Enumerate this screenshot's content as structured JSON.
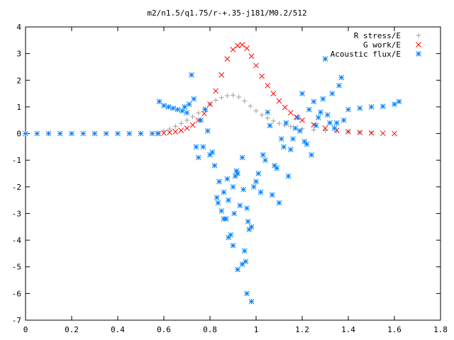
{
  "chart_data": {
    "type": "scatter",
    "title": "m2/n1.5/q1.75/r-+.35-j181/M0.2/512",
    "xlabel": "",
    "ylabel": "",
    "xlim": [
      0,
      1.8
    ],
    "ylim": [
      -7,
      4
    ],
    "xticks": [
      "0",
      "0.2",
      "0.4",
      "0.6",
      "0.8",
      "1",
      "1.2",
      "1.4",
      "1.6",
      "1.8"
    ],
    "yticks": [
      "-7",
      "-6",
      "-5",
      "-4",
      "-3",
      "-2",
      "-1",
      "0",
      "1",
      "2",
      "3",
      "4"
    ],
    "grid": false,
    "legend_position": "top-right",
    "series": [
      {
        "name": "R stress/E",
        "marker": "plus",
        "color": "#a0a0a0",
        "x": [
          0.575,
          0.6,
          0.625,
          0.65,
          0.675,
          0.7,
          0.725,
          0.75,
          0.775,
          0.8,
          0.825,
          0.85,
          0.875,
          0.9,
          0.925,
          0.95,
          0.975,
          1.0,
          1.025,
          1.05,
          1.075,
          1.1,
          1.125,
          1.15,
          1.2,
          1.25,
          1.3,
          1.35,
          1.4,
          1.45,
          1.5
        ],
        "y": [
          0.03,
          0.1,
          0.17,
          0.27,
          0.38,
          0.5,
          0.63,
          0.77,
          0.92,
          1.1,
          1.25,
          1.35,
          1.42,
          1.44,
          1.37,
          1.22,
          1.03,
          0.85,
          0.7,
          0.58,
          0.47,
          0.38,
          0.31,
          0.26,
          0.18,
          0.14,
          0.11,
          0.09,
          0.07,
          0.05,
          0.04
        ]
      },
      {
        "name": "G work/E",
        "marker": "cross",
        "color": "#ff0000",
        "x": [
          0.575,
          0.6,
          0.625,
          0.65,
          0.675,
          0.7,
          0.725,
          0.75,
          0.775,
          0.8,
          0.825,
          0.85,
          0.875,
          0.9,
          0.92,
          0.94,
          0.96,
          0.98,
          1.0,
          1.025,
          1.05,
          1.075,
          1.1,
          1.125,
          1.15,
          1.175,
          1.2,
          1.25,
          1.3,
          1.35,
          1.4,
          1.45,
          1.5,
          1.55,
          1.6
        ],
        "y": [
          0.0,
          0.02,
          0.04,
          0.07,
          0.12,
          0.2,
          0.32,
          0.5,
          0.75,
          1.1,
          1.6,
          2.2,
          2.8,
          3.15,
          3.3,
          3.33,
          3.2,
          2.9,
          2.55,
          2.15,
          1.8,
          1.5,
          1.22,
          0.98,
          0.78,
          0.62,
          0.5,
          0.33,
          0.2,
          0.12,
          0.07,
          0.04,
          0.02,
          0.01,
          0.0
        ]
      },
      {
        "name": "Acoustic flux/E",
        "marker": "star",
        "color": "#0080ff",
        "x": [
          0.0,
          0.05,
          0.1,
          0.15,
          0.2,
          0.25,
          0.3,
          0.35,
          0.4,
          0.45,
          0.5,
          0.55,
          0.575,
          0.58,
          0.6,
          0.62,
          0.64,
          0.66,
          0.68,
          0.7,
          0.72,
          0.74,
          0.76,
          0.78,
          0.8,
          0.82,
          0.84,
          0.86,
          0.88,
          0.9,
          0.92,
          0.94,
          0.96,
          0.98,
          1.0,
          1.02,
          1.04,
          1.06,
          1.08,
          1.1,
          1.12,
          1.14,
          1.16,
          1.18,
          1.2,
          1.22,
          1.24,
          1.26,
          1.28,
          1.3,
          1.32,
          1.34,
          1.36,
          1.38,
          1.4,
          1.45,
          1.5,
          1.55,
          1.6,
          1.62,
          0.73,
          0.71,
          0.69,
          0.75,
          0.77,
          0.79,
          0.81,
          0.83,
          0.85,
          0.87,
          0.89,
          0.91,
          0.93,
          0.95,
          0.97,
          0.99,
          1.01,
          1.03,
          1.05,
          1.07,
          1.09,
          1.11,
          1.13,
          1.15,
          1.17,
          1.19,
          1.21,
          1.23,
          1.25,
          1.27,
          1.29,
          1.31,
          1.33,
          1.35,
          1.37,
          0.86,
          0.88,
          0.9,
          0.92,
          0.94,
          0.96,
          0.98,
          0.955,
          0.965,
          0.905,
          0.945,
          0.875,
          0.835,
          0.915
        ],
        "y": [
          0,
          0,
          0,
          0,
          0,
          0,
          0,
          0,
          0,
          0,
          0,
          0,
          0,
          1.2,
          1.05,
          1.0,
          0.95,
          0.9,
          0.85,
          0.78,
          2.2,
          -0.5,
          0.5,
          0.9,
          -0.8,
          -1.2,
          -1.8,
          -2.2,
          -2.5,
          -2.0,
          -1.5,
          -0.9,
          -2.8,
          -3.5,
          -1.8,
          -2.2,
          -1.0,
          0.3,
          -1.2,
          -2.6,
          -0.5,
          -1.6,
          -0.2,
          0.6,
          1.5,
          -0.4,
          -0.8,
          0.3,
          0.8,
          2.8,
          0.4,
          0.2,
          1.8,
          0.5,
          0.9,
          0.95,
          1.0,
          1.02,
          1.1,
          1.2,
          1.3,
          1.1,
          1.0,
          -0.9,
          -0.5,
          0.1,
          -0.7,
          -2.4,
          -2.9,
          -3.2,
          -3.8,
          -1.6,
          -2.7,
          -4.4,
          -3.6,
          -2.0,
          -1.5,
          -0.8,
          0.8,
          -2.3,
          -1.3,
          -0.2,
          0.4,
          -0.6,
          0.2,
          0.1,
          -0.3,
          0.9,
          1.2,
          0.6,
          1.3,
          0.7,
          1.5,
          0.4,
          2.1,
          -3.2,
          -3.9,
          -4.2,
          -5.1,
          -4.9,
          -6.0,
          -6.3,
          -4.8,
          -3.3,
          -3.0,
          -2.1,
          -1.7,
          -2.6,
          -1.4
        ]
      }
    ]
  }
}
